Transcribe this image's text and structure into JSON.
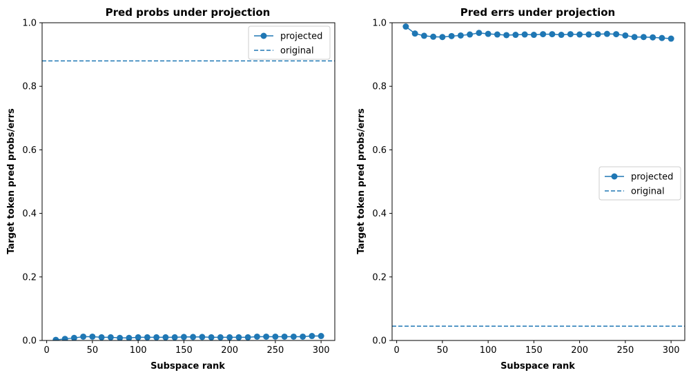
{
  "colors": {
    "series": "#1f77b4",
    "axis": "#000000",
    "legend_border": "#cccccc"
  },
  "chart_data": [
    {
      "type": "line",
      "title": "Pred probs under projection",
      "xlabel": "Subspace rank",
      "ylabel": "Target token pred probs/errs",
      "xlim": [
        -5,
        315
      ],
      "ylim": [
        0,
        1
      ],
      "xticks": [
        0,
        50,
        100,
        150,
        200,
        250,
        300
      ],
      "yticks": [
        0.0,
        0.2,
        0.4,
        0.6,
        0.8,
        1.0
      ],
      "ytick_labels": [
        "0.0",
        "0.2",
        "0.4",
        "0.6",
        "0.8",
        "1.0"
      ],
      "grid": false,
      "legend_position": "top-right",
      "x": [
        10,
        20,
        30,
        40,
        50,
        60,
        70,
        80,
        90,
        100,
        110,
        120,
        130,
        140,
        150,
        160,
        170,
        180,
        190,
        200,
        210,
        220,
        230,
        240,
        250,
        260,
        270,
        280,
        290,
        300
      ],
      "series": [
        {
          "name": "projected",
          "style": "solid-marker",
          "values": [
            0.002,
            0.005,
            0.008,
            0.012,
            0.012,
            0.01,
            0.01,
            0.008,
            0.008,
            0.01,
            0.01,
            0.01,
            0.01,
            0.01,
            0.011,
            0.011,
            0.011,
            0.01,
            0.01,
            0.01,
            0.01,
            0.01,
            0.012,
            0.012,
            0.012,
            0.012,
            0.012,
            0.012,
            0.014,
            0.014
          ]
        },
        {
          "name": "original",
          "style": "dashed",
          "constant": 0.88
        }
      ]
    },
    {
      "type": "line",
      "title": "Pred errs under projection",
      "xlabel": "Subspace rank",
      "ylabel": "Target token pred probs/errs",
      "xlim": [
        -5,
        315
      ],
      "ylim": [
        0,
        1
      ],
      "xticks": [
        0,
        50,
        100,
        150,
        200,
        250,
        300
      ],
      "yticks": [
        0.0,
        0.2,
        0.4,
        0.6,
        0.8,
        1.0
      ],
      "ytick_labels": [
        "0.0",
        "0.2",
        "0.4",
        "0.6",
        "0.8",
        "1.0"
      ],
      "grid": false,
      "legend_position": "center-right",
      "x": [
        10,
        20,
        30,
        40,
        50,
        60,
        70,
        80,
        90,
        100,
        110,
        120,
        130,
        140,
        150,
        160,
        170,
        180,
        190,
        200,
        210,
        220,
        230,
        240,
        250,
        260,
        270,
        280,
        290,
        300
      ],
      "series": [
        {
          "name": "projected",
          "style": "solid-marker",
          "values": [
            0.988,
            0.966,
            0.959,
            0.956,
            0.955,
            0.958,
            0.96,
            0.963,
            0.968,
            0.965,
            0.963,
            0.961,
            0.962,
            0.963,
            0.962,
            0.964,
            0.964,
            0.962,
            0.964,
            0.963,
            0.963,
            0.964,
            0.965,
            0.964,
            0.96,
            0.955,
            0.955,
            0.954,
            0.952,
            0.95
          ]
        },
        {
          "name": "original",
          "style": "dashed",
          "constant": 0.045
        }
      ]
    }
  ]
}
